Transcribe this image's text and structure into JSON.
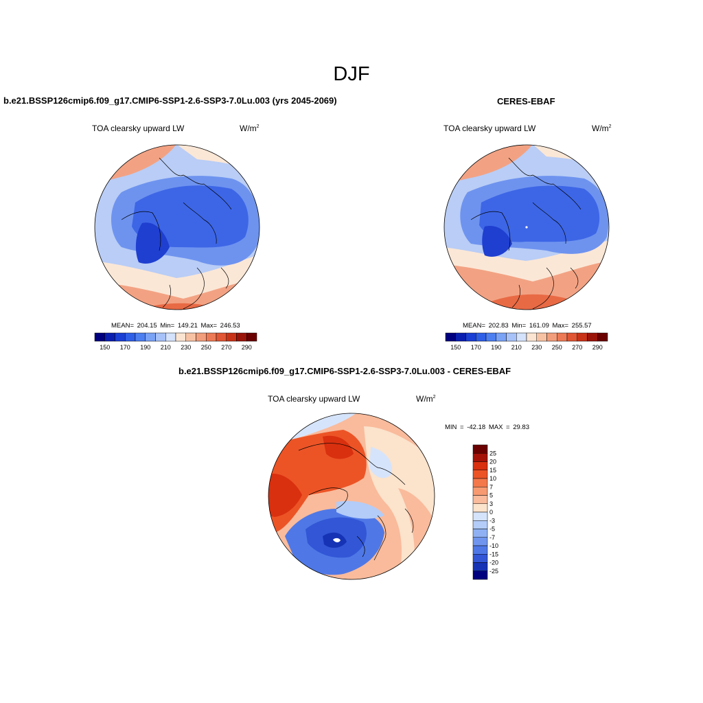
{
  "page": {
    "title": "DJF"
  },
  "panels": [
    {
      "title": "b.e21.BSSP126cmip6.f09_g17.CMIP6-SSP1-2.6-SSP3-7.0Lu.003 (yrs 2045-2069)",
      "variable": "TOA clearsky upward LW",
      "units": "W/m",
      "units_exp": "2",
      "stats": "MEAN= 204.15  Min= 149.21  Max= 246.53"
    },
    {
      "title": "CERES-EBAF",
      "variable": "TOA clearsky upward LW",
      "units": "W/m",
      "units_exp": "2",
      "stats": "MEAN= 202.83  Min= 161.09  Max= 255.57"
    },
    {
      "title": "b.e21.BSSP126cmip6.f09_g17.CMIP6-SSP1-2.6-SSP3-7.0Lu.003 - CERES-EBAF",
      "variable": "TOA clearsky upward LW",
      "units": "W/m",
      "units_exp": "2",
      "stats": "MIN = -42.18 MAX =  29.83"
    }
  ],
  "colorbars": {
    "absolute": {
      "colors": [
        "#00007f",
        "#0a1fb0",
        "#1a3fd4",
        "#2f5fe6",
        "#4d7ff0",
        "#7aa2f5",
        "#a7c2f8",
        "#d4e2fb",
        "#fbe5d2",
        "#f7c2a4",
        "#f29e7c",
        "#ec7a56",
        "#e15634",
        "#c93318",
        "#9b140a",
        "#6b0000"
      ],
      "tick_labels": [
        "150",
        "170",
        "190",
        "210",
        "230",
        "250",
        "270",
        "290"
      ]
    },
    "difference": {
      "colors": [
        "#6b0000",
        "#a51208",
        "#d9300f",
        "#ec5426",
        "#f3784a",
        "#f79a72",
        "#f9bb9c",
        "#fbe3cc",
        "#d6e4fb",
        "#b3ccf8",
        "#8fb1f3",
        "#6f95ee",
        "#4f78e6",
        "#3256d6",
        "#1633b6",
        "#00007f"
      ],
      "tick_labels": [
        "25",
        "20",
        "15",
        "10",
        "7",
        "5",
        "3",
        "0",
        "-3",
        "-5",
        "-7",
        "-10",
        "-15",
        "-20",
        "-25"
      ]
    }
  },
  "map_palette": {
    "deep_blue": "#1f3fd0",
    "blue": "#3d66e6",
    "mid_blue": "#6e93ef",
    "light_blue": "#b9cdf6",
    "pale_blue": "#dfe9fb",
    "cream": "#fbe7d6",
    "salmon": "#f2a283",
    "orange_red": "#e86a45",
    "dark_red": "#c7341a"
  }
}
